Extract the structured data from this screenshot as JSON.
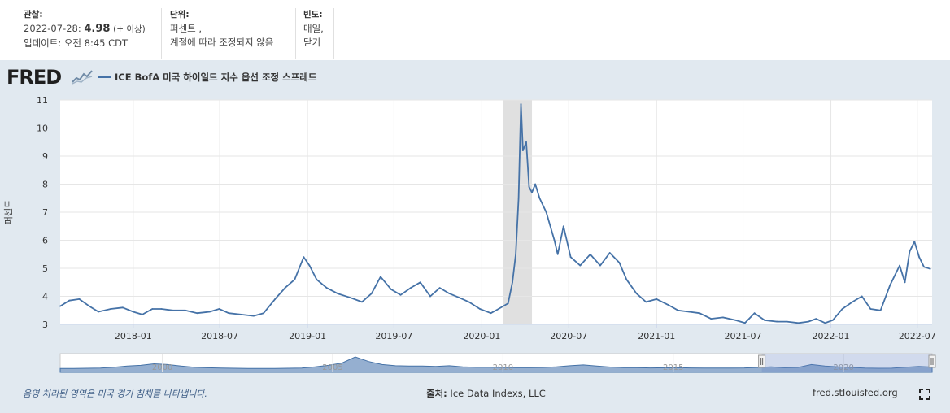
{
  "meta": {
    "obs_label": "관찰:",
    "obs_date": "2022-07-28:",
    "obs_value": "4.98",
    "obs_tag": "(+ 이상)",
    "updated": "업데이트: 오전 8:45 CDT",
    "units_label": "단위:",
    "units_line1": "퍼센트 ,",
    "units_line2": "계절에 따라 조정되지 않음",
    "freq_label": "빈도:",
    "freq_line1": "매일,",
    "freq_line2": "닫기"
  },
  "logo": {
    "text": "FRED"
  },
  "legend": {
    "series_name": "ICE BofA 미국 하이일드 지수 옵션 조정 스프레드"
  },
  "footer": {
    "recession_note": "음영 처리된 영역은 미국 경기 침체를 나타냅니다.",
    "source_label": "출처:",
    "source_value": "Ice Data Indexs, LLC",
    "url": "fred.stlouisfed.org"
  },
  "colors": {
    "series": "#4572a7",
    "recession": "#e0e0e0",
    "panel_bg": "#e1e9f0"
  },
  "chart_data": {
    "type": "line",
    "ylabel": "퍼센트",
    "ylim": [
      3,
      11
    ],
    "yticks": [
      3,
      4,
      5,
      6,
      7,
      8,
      9,
      10,
      11
    ],
    "xlim": [
      "2017-08-01",
      "2022-08-01"
    ],
    "xticks": [
      "2018-01",
      "2018-07",
      "2019-01",
      "2019-07",
      "2020-01",
      "2020-07",
      "2021-01",
      "2021-07",
      "2022-01",
      "2022-07"
    ],
    "grid": true,
    "legend_position": "top-left",
    "recession_bands": [
      [
        "2020-02-15",
        "2020-04-15"
      ]
    ],
    "series": [
      {
        "name": "ICE BofA 미국 하이일드 지수 옵션 조정 스프레드",
        "x": [
          "2017-08-01",
          "2017-08-20",
          "2017-09-10",
          "2017-10-01",
          "2017-10-20",
          "2017-11-15",
          "2017-12-10",
          "2018-01-01",
          "2018-01-20",
          "2018-02-10",
          "2018-03-01",
          "2018-03-25",
          "2018-04-20",
          "2018-05-15",
          "2018-06-10",
          "2018-06-30",
          "2018-07-20",
          "2018-08-15",
          "2018-09-10",
          "2018-10-01",
          "2018-10-25",
          "2018-11-15",
          "2018-12-05",
          "2018-12-24",
          "2019-01-05",
          "2019-01-20",
          "2019-02-10",
          "2019-03-05",
          "2019-04-01",
          "2019-04-25",
          "2019-05-15",
          "2019-06-03",
          "2019-06-25",
          "2019-07-15",
          "2019-08-05",
          "2019-08-25",
          "2019-09-15",
          "2019-10-05",
          "2019-10-25",
          "2019-11-15",
          "2019-12-05",
          "2019-12-28",
          "2020-01-20",
          "2020-02-05",
          "2020-02-25",
          "2020-03-05",
          "2020-03-12",
          "2020-03-18",
          "2020-03-23",
          "2020-03-27",
          "2020-04-03",
          "2020-04-09",
          "2020-04-15",
          "2020-04-22",
          "2020-05-01",
          "2020-05-15",
          "2020-06-01",
          "2020-06-08",
          "2020-06-20",
          "2020-07-05",
          "2020-07-25",
          "2020-08-15",
          "2020-09-05",
          "2020-09-25",
          "2020-10-15",
          "2020-10-30",
          "2020-11-20",
          "2020-12-10",
          "2021-01-01",
          "2021-01-25",
          "2021-02-15",
          "2021-03-10",
          "2021-04-01",
          "2021-04-25",
          "2021-05-20",
          "2021-06-15",
          "2021-07-05",
          "2021-07-25",
          "2021-08-15",
          "2021-09-10",
          "2021-10-01",
          "2021-10-25",
          "2021-11-15",
          "2021-12-01",
          "2021-12-20",
          "2022-01-05",
          "2022-01-25",
          "2022-02-15",
          "2022-03-07",
          "2022-03-25",
          "2022-04-15",
          "2022-05-05",
          "2022-05-25",
          "2022-06-05",
          "2022-06-15",
          "2022-06-25",
          "2022-07-05",
          "2022-07-15",
          "2022-07-28"
        ],
        "values": [
          3.65,
          3.85,
          3.9,
          3.65,
          3.45,
          3.55,
          3.6,
          3.45,
          3.35,
          3.55,
          3.55,
          3.5,
          3.5,
          3.4,
          3.45,
          3.55,
          3.4,
          3.35,
          3.3,
          3.4,
          3.9,
          4.3,
          4.6,
          5.4,
          5.1,
          4.6,
          4.3,
          4.1,
          3.95,
          3.8,
          4.1,
          4.7,
          4.25,
          4.05,
          4.3,
          4.5,
          4.0,
          4.3,
          4.1,
          3.95,
          3.8,
          3.55,
          3.4,
          3.55,
          3.75,
          4.5,
          5.5,
          7.5,
          10.85,
          9.2,
          9.5,
          7.9,
          7.7,
          8.0,
          7.5,
          7.0,
          6.0,
          5.5,
          6.5,
          5.4,
          5.1,
          5.5,
          5.1,
          5.55,
          5.2,
          4.6,
          4.1,
          3.8,
          3.9,
          3.7,
          3.5,
          3.45,
          3.4,
          3.2,
          3.25,
          3.15,
          3.05,
          3.4,
          3.15,
          3.1,
          3.1,
          3.05,
          3.1,
          3.2,
          3.05,
          3.15,
          3.55,
          3.8,
          4.0,
          3.55,
          3.5,
          4.4,
          5.1,
          4.5,
          5.6,
          5.95,
          5.4,
          5.05,
          4.98
        ]
      }
    ]
  },
  "navigator": {
    "labels": [
      "2000",
      "2005",
      "2010",
      "2015",
      "2020"
    ],
    "start_year": 1997,
    "end_year": 2022.6,
    "selection": [
      2017.6,
      2022.6
    ],
    "values": [
      3,
      3,
      3.2,
      3.5,
      4.5,
      6,
      7,
      9,
      8,
      6,
      4.5,
      3.8,
      3.5,
      3.2,
      3,
      3,
      3,
      3.2,
      3.5,
      5,
      7,
      10,
      18,
      12,
      8,
      6.5,
      6,
      6,
      5.5,
      6.5,
      5,
      4.5,
      4.5,
      4.2,
      4,
      4,
      4.2,
      5,
      6.5,
      7.5,
      6,
      4.8,
      4,
      3.9,
      3.6,
      3.8,
      4,
      3.6,
      3.4,
      3.4,
      3.5,
      3.6,
      4.2,
      5,
      3.8,
      4.2,
      8,
      6,
      5,
      4.2,
      3.4,
      3.2,
      3.3,
      4.5,
      5.5,
      4.9
    ]
  }
}
